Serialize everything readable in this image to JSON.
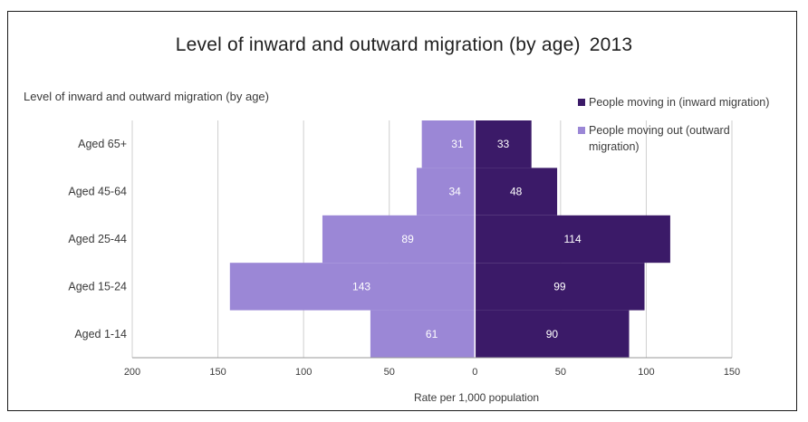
{
  "title": "Level of inward and outward migration (by age)",
  "title_year": "2013",
  "chart_data": {
    "type": "bar",
    "orientation": "horizontal",
    "subtitle": "Level of inward and outward migration (by age)",
    "xlabel": "Rate per 1,000 population",
    "ylabel": "",
    "xlim": [
      -200,
      150
    ],
    "x_ticks": [
      -200,
      -150,
      -100,
      -50,
      0,
      50,
      100,
      150
    ],
    "x_tick_labels": [
      "200",
      "150",
      "100",
      "50",
      "0",
      "50",
      "100",
      "150"
    ],
    "categories": [
      "Aged 65+",
      "Aged 45-64",
      "Aged 25-44",
      "Aged 15-24",
      "Aged 1-14"
    ],
    "series": [
      {
        "name": "People moving in (inward migration)",
        "values": [
          33,
          48,
          114,
          99,
          90
        ],
        "color": "#3b1a68",
        "side": "right"
      },
      {
        "name": "People moving out (outward migration)",
        "values": [
          31,
          34,
          89,
          143,
          61
        ],
        "color": "#9b87d6",
        "side": "left"
      }
    ],
    "grid": true,
    "legend_position": "top-right"
  }
}
